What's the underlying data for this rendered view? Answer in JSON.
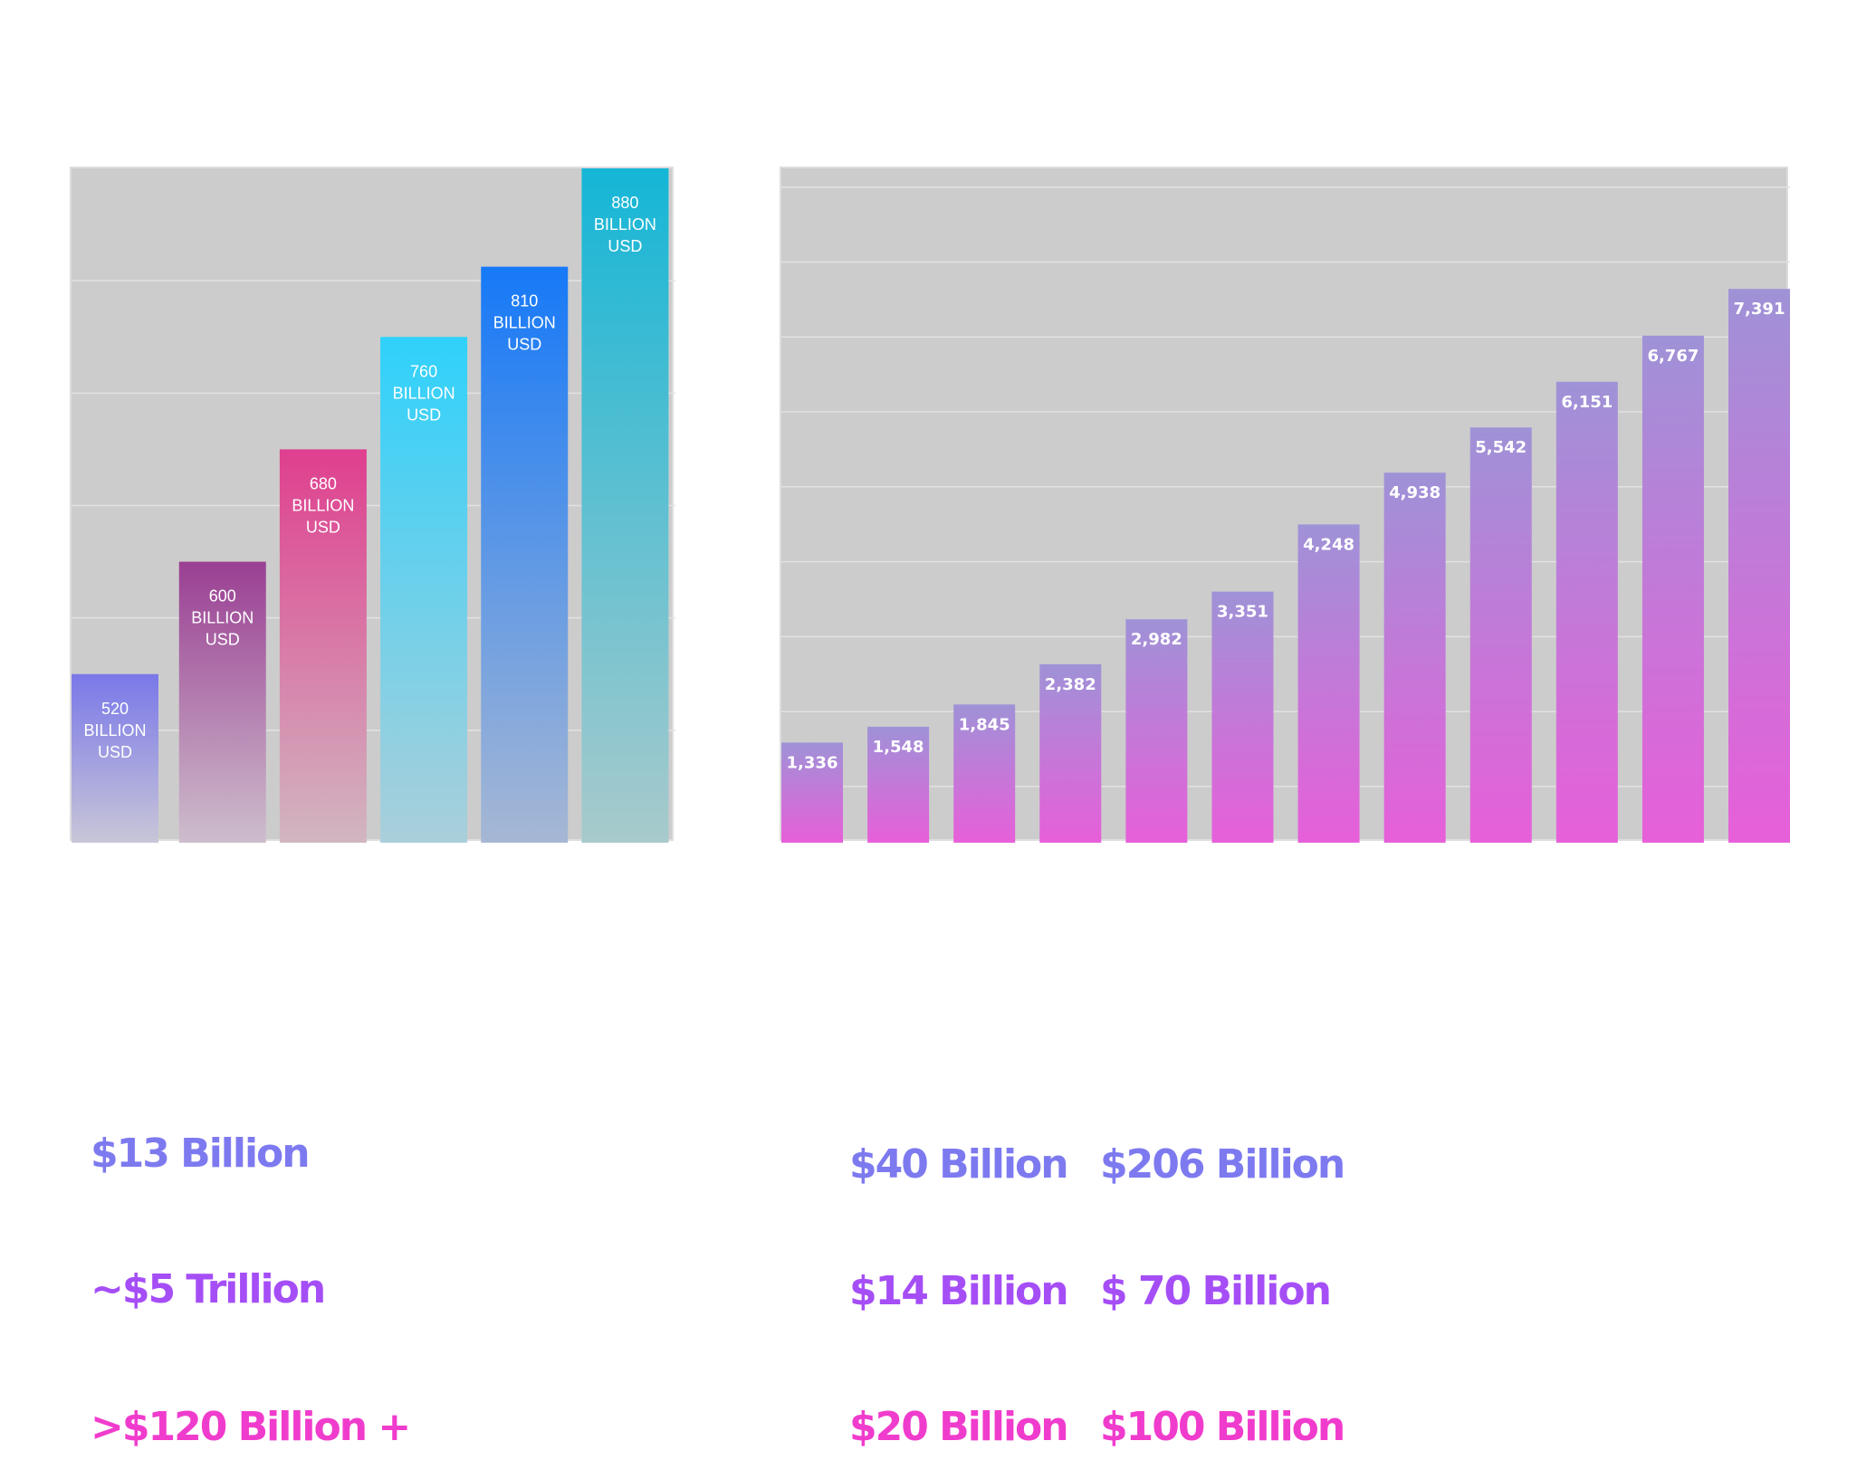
{
  "charts": {
    "left": {
      "chart_data": {
        "type": "bar",
        "values": [
          520,
          600,
          680,
          760,
          810,
          880
        ],
        "labels": [
          "520 BILLION USD",
          "600 BILLION USD",
          "680 BILLION USD",
          "760 BILLION USD",
          "810 BILLION USD",
          "880 BILLION USD"
        ],
        "value_unit": "BILLION USD",
        "ylim": [
          400,
          880
        ],
        "grid": true,
        "colors": [
          {
            "top": "#7a78e8",
            "bottom": "#c8c6d8"
          },
          {
            "top": "#9a3f93",
            "bottom": "#cdbdcc"
          },
          {
            "top": "#df3f8f",
            "bottom": "#d1b6c0"
          },
          {
            "top": "#2fd1fb",
            "bottom": "#aacfda"
          },
          {
            "top": "#1679f7",
            "bottom": "#a6b7d4"
          },
          {
            "top": "#15b6d6",
            "bottom": "#a8cacc"
          }
        ]
      }
    },
    "right": {
      "chart_data": {
        "type": "bar",
        "values": [
          1336,
          1548,
          1845,
          2382,
          2982,
          3351,
          4248,
          4938,
          5542,
          6151,
          6767,
          7391
        ],
        "labels": [
          "1,336",
          "1,548",
          "1,845",
          "2,382",
          "2,982",
          "3,351",
          "4,248",
          "4,938",
          "5,542",
          "6,151",
          "6,767",
          "7,391"
        ],
        "ylim": [
          0,
          9000
        ],
        "grid": true,
        "colors": {
          "top": "#9f92d7",
          "bottom": "#e75fd9"
        }
      }
    }
  },
  "stats": {
    "left_col": [
      {
        "text": "$13 Billion",
        "color": "#7d7af0"
      },
      {
        "text": "~$5 Trillion",
        "color": "#a54ef6"
      },
      {
        "text": ">$120 Billion +",
        "color": "#f03ccd"
      }
    ],
    "mid_col": [
      {
        "text": "$40 Billion",
        "color": "#7d7af0"
      },
      {
        "text": "$14 Billion",
        "color": "#a54ef6"
      },
      {
        "text": "$20 Billion",
        "color": "#f03ccd"
      }
    ],
    "right_col": [
      {
        "text": "$206 Billion",
        "color": "#7d7af0"
      },
      {
        "text": "$ 70 Billion",
        "color": "#a54ef6"
      },
      {
        "text": "$100 Billion",
        "color": "#f03ccd"
      }
    ]
  }
}
